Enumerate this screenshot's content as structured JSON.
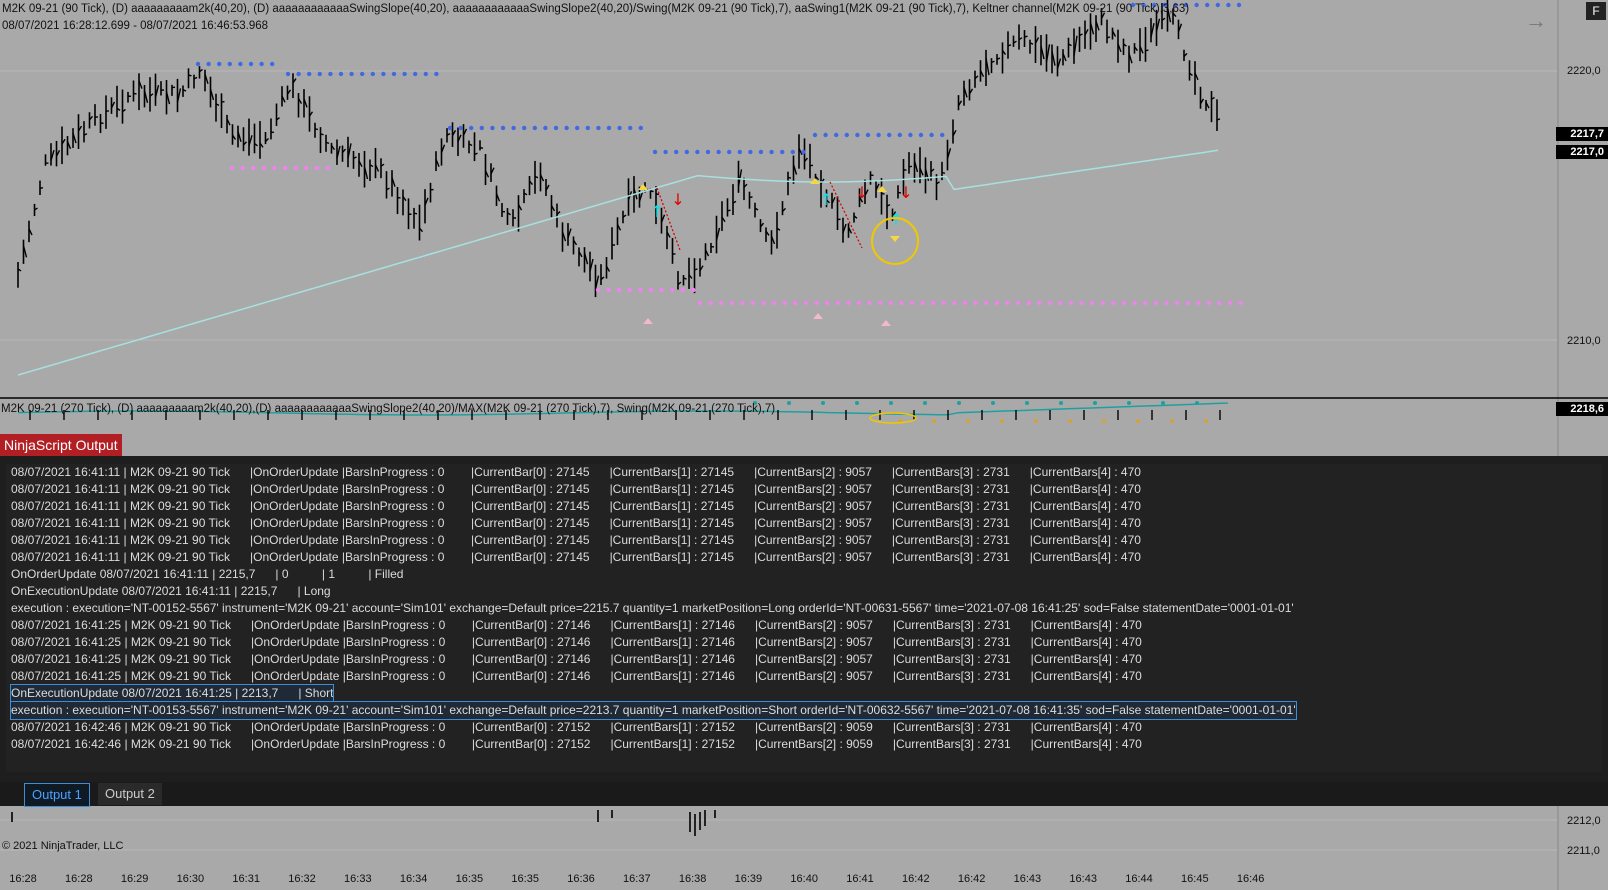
{
  "chart": {
    "title": "M2K 09-21 (90 Tick), (D) aaaaaaaaam2k(40,20), (D) aaaaaaaaaaaaSwingSlope(40,20), aaaaaaaaaaaaSwingSlope2(40,20)/Swing(M2K 09-21 (90 Tick),7), aaSwing1(M2K 09-21 (90 Tick),7), Keltner channel(M2K 09-21 (90 Tick),3,63)",
    "range": "08/07/2021 16:28:12.699 - 08/07/2021 16:46:53.968",
    "subpanel_title": "M2K 09-21 (270 Tick), (D) aaaaaaaaam2k(40,20),(D) aaaaaaaaaaaaSwingSlope2(40,20)/MAX(M2K 09-21 (270 Tick),7), Swing(M2K 09-21 (270 Tick),7)",
    "price_labels": [
      "2220,0",
      "2210,0"
    ],
    "price_badges": [
      "2217,7",
      "2217,0",
      "2218,6"
    ],
    "lower_price_labels": [
      "2212,0",
      "2211,0"
    ],
    "time_labels": [
      "16:28",
      "16:28",
      "16:29",
      "16:30",
      "16:31",
      "16:32",
      "16:33",
      "16:34",
      "16:35",
      "16:35",
      "16:36",
      "16:37",
      "16:38",
      "16:39",
      "16:40",
      "16:41",
      "16:42",
      "16:42",
      "16:43",
      "16:43",
      "16:44",
      "16:45",
      "16:46"
    ],
    "copyright": "© 2021 NinjaTrader, LLC",
    "corner_button": "F",
    "colors": {
      "background": "#a9a9a9",
      "keltner": "#a8e0e0",
      "swing_high": "#4169e1",
      "swing_low": "#ee82ee",
      "bars": "#000000"
    }
  },
  "output": {
    "window_title": "NinjaScript Output",
    "lines": [
      "08/07/2021 16:41:11 | M2K 09-21 90 Tick      |OnOrderUpdate |BarsInProgress : 0        |CurrentBar[0] : 27145      |CurrentBars[1] : 27145      |CurrentBars[2] : 9057      |CurrentBars[3] : 2731      |CurrentBars[4] : 470",
      "08/07/2021 16:41:11 | M2K 09-21 90 Tick      |OnOrderUpdate |BarsInProgress : 0        |CurrentBar[0] : 27145      |CurrentBars[1] : 27145      |CurrentBars[2] : 9057      |CurrentBars[3] : 2731      |CurrentBars[4] : 470",
      "08/07/2021 16:41:11 | M2K 09-21 90 Tick      |OnOrderUpdate |BarsInProgress : 0        |CurrentBar[0] : 27145      |CurrentBars[1] : 27145      |CurrentBars[2] : 9057      |CurrentBars[3] : 2731      |CurrentBars[4] : 470",
      "08/07/2021 16:41:11 | M2K 09-21 90 Tick      |OnOrderUpdate |BarsInProgress : 0        |CurrentBar[0] : 27145      |CurrentBars[1] : 27145      |CurrentBars[2] : 9057      |CurrentBars[3] : 2731      |CurrentBars[4] : 470",
      "08/07/2021 16:41:11 | M2K 09-21 90 Tick      |OnOrderUpdate |BarsInProgress : 0        |CurrentBar[0] : 27145      |CurrentBars[1] : 27145      |CurrentBars[2] : 9057      |CurrentBars[3] : 2731      |CurrentBars[4] : 470",
      "08/07/2021 16:41:11 | M2K 09-21 90 Tick      |OnOrderUpdate |BarsInProgress : 0        |CurrentBar[0] : 27145      |CurrentBars[1] : 27145      |CurrentBars[2] : 9057      |CurrentBars[3] : 2731      |CurrentBars[4] : 470",
      "OnOrderUpdate 08/07/2021 16:41:11 | 2215,7      | 0          | 1          | Filled",
      "OnExecutionUpdate 08/07/2021 16:41:11 | 2215,7      | Long",
      "execution : execution='NT-00152-5567' instrument='M2K 09-21' account='Sim101' exchange=Default price=2215.7 quantity=1 marketPosition=Long orderId='NT-00631-5567' time='2021-07-08 16:41:25' sod=False statementDate='0001-01-01'",
      "08/07/2021 16:41:25 | M2K 09-21 90 Tick      |OnOrderUpdate |BarsInProgress : 0        |CurrentBar[0] : 27146      |CurrentBars[1] : 27146      |CurrentBars[2] : 9057      |CurrentBars[3] : 2731      |CurrentBars[4] : 470",
      "08/07/2021 16:41:25 | M2K 09-21 90 Tick      |OnOrderUpdate |BarsInProgress : 0        |CurrentBar[0] : 27146      |CurrentBars[1] : 27146      |CurrentBars[2] : 9057      |CurrentBars[3] : 2731      |CurrentBars[4] : 470",
      "08/07/2021 16:41:25 | M2K 09-21 90 Tick      |OnOrderUpdate |BarsInProgress : 0        |CurrentBar[0] : 27146      |CurrentBars[1] : 27146      |CurrentBars[2] : 9057      |CurrentBars[3] : 2731      |CurrentBars[4] : 470",
      "08/07/2021 16:41:25 | M2K 09-21 90 Tick      |OnOrderUpdate |BarsInProgress : 0        |CurrentBar[0] : 27146      |CurrentBars[1] : 27146      |CurrentBars[2] : 9057      |CurrentBars[3] : 2731      |CurrentBars[4] : 470",
      "OnExecutionUpdate 08/07/2021 16:41:25 | 2213,7      | Short",
      "execution : execution='NT-00153-5567' instrument='M2K 09-21' account='Sim101' exchange=Default price=2213.7 quantity=1 marketPosition=Short orderId='NT-00632-5567' time='2021-07-08 16:41:35' sod=False statementDate='0001-01-01'",
      "08/07/2021 16:42:46 | M2K 09-21 90 Tick      |OnOrderUpdate |BarsInProgress : 0        |CurrentBar[0] : 27152      |CurrentBars[1] : 27152      |CurrentBars[2] : 9059      |CurrentBars[3] : 2731      |CurrentBars[4] : 470",
      "08/07/2021 16:42:46 | M2K 09-21 90 Tick      |OnOrderUpdate |BarsInProgress : 0        |CurrentBar[0] : 27152      |CurrentBars[1] : 27152      |CurrentBars[2] : 9059      |CurrentBars[3] : 2731      |CurrentBars[4] : 470"
    ],
    "tabs": [
      "Output 1",
      "Output 2"
    ]
  }
}
